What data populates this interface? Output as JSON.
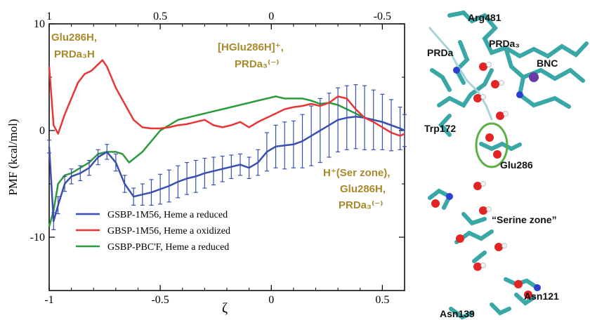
{
  "chart_data": {
    "type": "line",
    "xlabel": "ζ",
    "ylabel": "PMF (kcal/mol)",
    "xlim": [
      -1,
      0.6
    ],
    "ylim": [
      -15,
      10
    ],
    "x_ticks": [
      -1,
      -0.5,
      0,
      0.5
    ],
    "x_tick_labels": [
      "-1",
      "-0.5",
      "0",
      "0.5"
    ],
    "y_ticks": [
      10,
      0,
      -10
    ],
    "y_tick_labels": [
      "10",
      "0",
      "-10"
    ],
    "top_ticks": [
      -1,
      -0.5,
      0,
      0.5
    ],
    "top_tick_labels": [
      "1",
      "0.5",
      "0",
      "-0.5"
    ],
    "grid": false,
    "legend_position": "bottom-left",
    "series": [
      {
        "name": "GSBP-1M56, Heme a reduced",
        "color": "#3a50b0",
        "x": [
          -1.0,
          -0.98,
          -0.96,
          -0.93,
          -0.9,
          -0.86,
          -0.82,
          -0.78,
          -0.74,
          -0.7,
          -0.66,
          -0.62,
          -0.58,
          -0.54,
          -0.5,
          -0.46,
          -0.42,
          -0.38,
          -0.34,
          -0.3,
          -0.26,
          -0.22,
          -0.18,
          -0.14,
          -0.1,
          -0.06,
          -0.02,
          0.02,
          0.06,
          0.1,
          0.14,
          0.18,
          0.22,
          0.26,
          0.3,
          0.34,
          0.38,
          0.42,
          0.46,
          0.5,
          0.54,
          0.58,
          0.6
        ],
        "y": [
          -1.5,
          -8.5,
          -7.0,
          -5.0,
          -4.3,
          -4.0,
          -3.5,
          -2.5,
          -2.0,
          -3.0,
          -5.0,
          -6.2,
          -6.0,
          -5.8,
          -5.5,
          -5.2,
          -4.8,
          -4.5,
          -4.3,
          -4.0,
          -3.8,
          -3.6,
          -3.4,
          -3.2,
          -3.5,
          -3.0,
          -2.0,
          -1.5,
          -1.4,
          -1.3,
          -1.0,
          -0.5,
          0.0,
          0.5,
          1.0,
          1.2,
          1.3,
          1.2,
          1.0,
          0.8,
          0.5,
          0.2,
          0.0
        ],
        "errors": [
          0.6,
          0.8,
          0.8,
          0.7,
          0.7,
          0.7,
          0.7,
          0.7,
          0.7,
          0.8,
          0.8,
          0.8,
          1.0,
          1.2,
          1.4,
          1.5,
          1.5,
          1.5,
          1.5,
          1.4,
          1.3,
          1.2,
          1.1,
          1.0,
          1.0,
          1.2,
          1.8,
          2.0,
          2.2,
          2.2,
          2.5,
          2.8,
          3.0,
          3.0,
          3.0,
          3.0,
          3.0,
          3.0,
          2.8,
          2.6,
          2.4,
          2.0,
          1.5
        ]
      },
      {
        "name": "GBSP-1M56, Heme a oxidized",
        "color": "#e83535",
        "x": [
          -1.0,
          -0.98,
          -0.96,
          -0.93,
          -0.9,
          -0.87,
          -0.84,
          -0.81,
          -0.78,
          -0.76,
          -0.74,
          -0.7,
          -0.66,
          -0.62,
          -0.58,
          -0.54,
          -0.5,
          -0.46,
          -0.42,
          -0.38,
          -0.34,
          -0.3,
          -0.26,
          -0.22,
          -0.18,
          -0.14,
          -0.1,
          -0.06,
          -0.02,
          0.02,
          0.06,
          0.1,
          0.14,
          0.18,
          0.22,
          0.26,
          0.3,
          0.34,
          0.38,
          0.42,
          0.46,
          0.5,
          0.54,
          0.58,
          0.6
        ],
        "y": [
          6.0,
          0.5,
          -0.3,
          1.5,
          3.0,
          4.5,
          5.3,
          5.6,
          6.2,
          6.6,
          6.0,
          4.0,
          2.5,
          1.0,
          0.3,
          0.2,
          0.2,
          0.3,
          0.5,
          0.6,
          0.8,
          1.0,
          0.5,
          0.3,
          0.5,
          0.8,
          0.3,
          0.8,
          1.2,
          1.6,
          2.0,
          2.2,
          2.3,
          2.5,
          2.3,
          2.6,
          3.2,
          3.0,
          2.0,
          1.2,
          0.8,
          0.3,
          -0.2,
          -0.5,
          -0.3
        ]
      },
      {
        "name": "GSBP-PBC'F, Heme a reduced",
        "color": "#2e9a3e",
        "x": [
          -1.0,
          -0.98,
          -0.96,
          -0.93,
          -0.9,
          -0.86,
          -0.82,
          -0.78,
          -0.74,
          -0.7,
          -0.67,
          -0.64,
          -0.61,
          -0.58,
          -0.54,
          -0.5,
          -0.46,
          -0.42,
          -0.38,
          -0.34,
          -0.3,
          -0.26,
          -0.22,
          -0.18,
          -0.14,
          -0.1,
          -0.06,
          -0.02,
          0.02,
          0.06,
          0.1,
          0.14,
          0.18,
          0.22,
          0.26,
          0.3,
          0.34,
          0.38,
          0.42,
          0.46,
          0.5,
          0.54,
          0.58,
          0.6
        ],
        "y": [
          -9.0,
          -7.5,
          -5.0,
          -4.2,
          -4.0,
          -3.5,
          -3.0,
          -2.2,
          -2.0,
          -2.0,
          -2.2,
          -3.0,
          -2.5,
          -2.0,
          -1.0,
          0.0,
          0.5,
          1.0,
          1.2,
          1.4,
          1.6,
          1.8,
          2.0,
          2.2,
          2.4,
          2.6,
          2.8,
          3.0,
          3.2,
          3.0,
          3.0,
          3.0,
          2.8,
          2.5,
          2.6,
          2.4,
          2.0,
          1.6,
          1.2,
          1.0,
          0.8,
          0.5,
          0.2,
          0.0
        ]
      }
    ],
    "annotations": [
      {
        "text": "Glu286H,",
        "color": "#a88a2a"
      },
      {
        "text": "PRDa₃H",
        "color": "#a88a2a"
      },
      {
        "text": "[HGlu286H]⁺,",
        "color": "#a88a2a"
      },
      {
        "text": "PRDa₃⁽⁻⁾",
        "color": "#a88a2a"
      },
      {
        "text": "H⁺(Ser zone),",
        "color": "#a88a2a"
      },
      {
        "text": "Glu286H,",
        "color": "#a88a2a"
      },
      {
        "text": "PRDa₃⁽⁻⁾",
        "color": "#a88a2a"
      }
    ]
  },
  "molecule_labels": {
    "arg481": "Arg481",
    "prda": "PRDa",
    "prda3": "PRDa₃",
    "bnc": "BNC",
    "trp172": "Trp172",
    "glu286": "Glu286",
    "serine_zone": "“Serine zone”",
    "asn121": "Asn121",
    "asn139": "Asn139"
  },
  "colors": {
    "carbon": "#3aa7a7",
    "oxygen": "#e32424",
    "hydrogen": "#f2f2f2",
    "nitrogen": "#2d3fd0",
    "iron": "#6a3aa7",
    "highlight": "#5ab045",
    "annotation": "#a88a2a"
  }
}
